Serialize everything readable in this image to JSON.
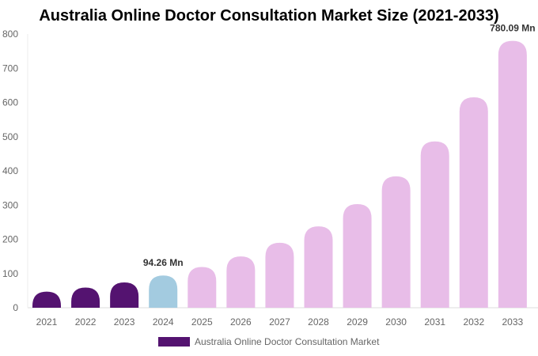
{
  "chart_data": {
    "type": "bar",
    "title": "Australia Online Doctor Consultation Market Size (2021-2033)",
    "categories": [
      "2021",
      "2022",
      "2023",
      "2024",
      "2025",
      "2026",
      "2027",
      "2028",
      "2029",
      "2030",
      "2031",
      "2032",
      "2033"
    ],
    "series": [
      {
        "name": "Australia Online Doctor Consultation Market",
        "values": [
          47,
          59,
          74,
          94.26,
          119,
          150,
          190,
          238,
          303,
          384,
          486,
          615,
          780.09
        ]
      }
    ],
    "data_labels": [
      {
        "category": "2024",
        "text": "94.26 Mn"
      },
      {
        "category": "2033",
        "text": "780.09 Mn"
      }
    ],
    "yticks": [
      0,
      100,
      200,
      300,
      400,
      500,
      600,
      700,
      800
    ],
    "ylim": [
      0,
      800
    ],
    "xlabel": "",
    "ylabel": "",
    "grid": false,
    "legend_position": "bottom",
    "colors": {
      "historical": "#541370",
      "base_year": "#a3cbe0",
      "forecast": "#e8bde8"
    }
  }
}
